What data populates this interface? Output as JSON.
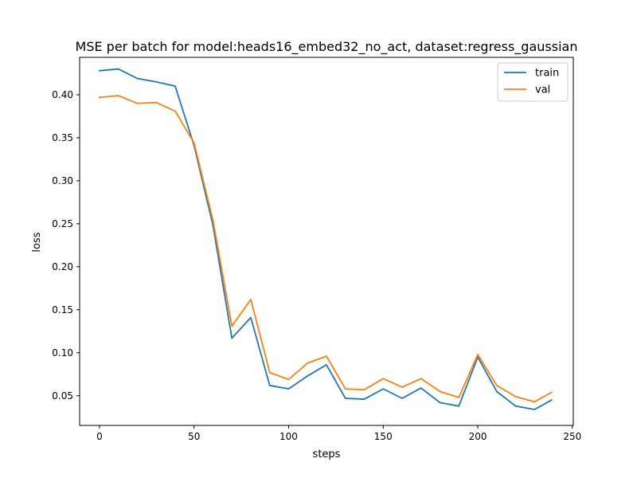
{
  "chart_data": {
    "type": "line",
    "title": "MSE per batch for model:heads16_embed32_no_act, dataset:regress_gaussian",
    "xlabel": "steps",
    "ylabel": "loss",
    "xlim": [
      -10.5,
      250.5
    ],
    "ylim": [
      0.0155,
      0.4435
    ],
    "x_ticks": [
      0,
      50,
      100,
      150,
      200,
      250
    ],
    "y_ticks": [
      0.05,
      0.1,
      0.15,
      0.2,
      0.25,
      0.3,
      0.35,
      0.4
    ],
    "x_tick_labels": [
      "0",
      "50",
      "100",
      "150",
      "200",
      "250"
    ],
    "y_tick_labels": [
      "0.05",
      "0.10",
      "0.15",
      "0.20",
      "0.25",
      "0.30",
      "0.35",
      "0.40"
    ],
    "grid": false,
    "legend_position": "top-right",
    "x": [
      0,
      10,
      20,
      30,
      40,
      50,
      60,
      70,
      80,
      90,
      100,
      110,
      120,
      130,
      140,
      150,
      160,
      170,
      180,
      190,
      200,
      210,
      220,
      230,
      239
    ],
    "series": [
      {
        "name": "train",
        "color": "#1f77b4",
        "values": [
          0.428,
          0.43,
          0.419,
          0.415,
          0.41,
          0.341,
          0.248,
          0.117,
          0.141,
          0.062,
          0.058,
          0.073,
          0.086,
          0.047,
          0.046,
          0.058,
          0.047,
          0.059,
          0.042,
          0.038,
          0.095,
          0.055,
          0.038,
          0.034,
          0.045
        ]
      },
      {
        "name": "val",
        "color": "#ff7f0e",
        "values": [
          0.397,
          0.399,
          0.39,
          0.391,
          0.381,
          0.344,
          0.254,
          0.131,
          0.162,
          0.077,
          0.069,
          0.088,
          0.096,
          0.058,
          0.057,
          0.07,
          0.06,
          0.07,
          0.055,
          0.048,
          0.098,
          0.062,
          0.049,
          0.043,
          0.054
        ]
      }
    ]
  }
}
